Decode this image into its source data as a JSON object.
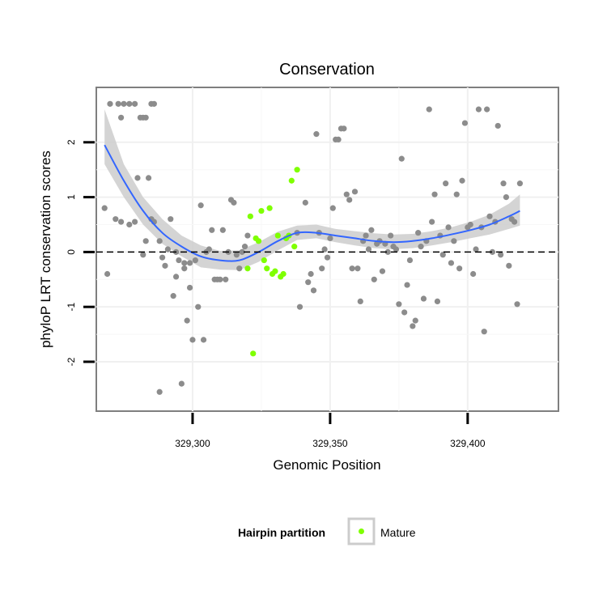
{
  "chart_data": {
    "type": "scatter",
    "title": "Conservation",
    "xlabel": "Genomic Position",
    "ylabel": "phyloP LRT conservation scores",
    "xlim": [
      329265,
      329433
    ],
    "ylim": [
      -2.9,
      3.0
    ],
    "x_ticks": [
      329300,
      329350,
      329400
    ],
    "x_tick_labels": [
      "329,300",
      "329,350",
      "329,400"
    ],
    "y_ticks": [
      -2,
      -1,
      0,
      1,
      2
    ],
    "y_tick_labels": [
      "-2",
      "-1",
      "0",
      "1",
      "2"
    ],
    "grid": true,
    "reference_line": {
      "y": 0,
      "style": "dashed"
    },
    "legend": {
      "title": "Hairpin partition",
      "entries": [
        "Mature"
      ],
      "placement": "bottom"
    },
    "colors": {
      "other": "#8c8c8c",
      "mature": "#7fff00",
      "smooth_line": "#3366ff",
      "confidence_band": "#cccccc"
    },
    "series": [
      {
        "points": [
          [
            329273,
            2.7
          ],
          [
            329275,
            2.7
          ],
          [
            329277,
            2.7
          ],
          [
            329279,
            2.7
          ],
          [
            329281,
            2.45
          ],
          [
            329282,
            2.45
          ],
          [
            329283,
            2.45
          ],
          [
            329285,
            2.7
          ],
          [
            329286,
            2.7
          ],
          [
            329274,
            2.45
          ],
          [
            329270,
            2.7
          ],
          [
            329268,
            0.8
          ],
          [
            329269,
            -0.4
          ],
          [
            329272,
            0.6
          ],
          [
            329274,
            0.55
          ],
          [
            329277,
            0.5
          ],
          [
            329279,
            0.55
          ],
          [
            329280,
            1.35
          ],
          [
            329282,
            -0.05
          ],
          [
            329283,
            0.2
          ],
          [
            329284,
            1.35
          ],
          [
            329285,
            0.6
          ],
          [
            329286,
            0.55
          ],
          [
            329288,
            0.2
          ],
          [
            329288,
            -2.55
          ],
          [
            329289,
            -0.1
          ],
          [
            329290,
            -0.25
          ],
          [
            329291,
            0.05
          ],
          [
            329292,
            0.6
          ],
          [
            329293,
            -0.8
          ],
          [
            329294,
            -0.45
          ],
          [
            329294,
            0.0
          ],
          [
            329295,
            -0.15
          ],
          [
            329296,
            -2.4
          ],
          [
            329297,
            -0.2
          ],
          [
            329297,
            -0.3
          ],
          [
            329298,
            -1.25
          ],
          [
            329299,
            -0.65
          ],
          [
            329299,
            -0.2
          ],
          [
            329300,
            -1.6
          ],
          [
            329301,
            -0.15
          ],
          [
            329302,
            -1.0
          ],
          [
            329303,
            0.85
          ],
          [
            329304,
            -1.6
          ],
          [
            329305,
            0.0
          ],
          [
            329306,
            0.05
          ],
          [
            329307,
            0.4
          ],
          [
            329308,
            -0.5
          ],
          [
            329309,
            -0.5
          ],
          [
            329310,
            -0.5
          ],
          [
            329311,
            0.4
          ],
          [
            329312,
            -0.5
          ],
          [
            329313,
            0.0
          ],
          [
            329314,
            0.95
          ],
          [
            329315,
            0.9
          ],
          [
            329316,
            -0.05
          ],
          [
            329317,
            -0.3
          ],
          [
            329318,
            0.0
          ],
          [
            329319,
            0.1
          ],
          [
            329320,
            0.3
          ],
          [
            329338,
            0.35
          ],
          [
            329339,
            -1.0
          ],
          [
            329341,
            0.9
          ],
          [
            329342,
            -0.55
          ],
          [
            329343,
            -0.4
          ],
          [
            329344,
            -0.7
          ],
          [
            329345,
            2.15
          ],
          [
            329346,
            0.35
          ],
          [
            329347,
            -0.3
          ],
          [
            329348,
            0.05
          ],
          [
            329349,
            -0.1
          ],
          [
            329350,
            0.25
          ],
          [
            329351,
            0.8
          ],
          [
            329352,
            2.05
          ],
          [
            329353,
            2.05
          ],
          [
            329354,
            2.25
          ],
          [
            329355,
            2.25
          ],
          [
            329356,
            1.05
          ],
          [
            329357,
            0.95
          ],
          [
            329358,
            -0.3
          ],
          [
            329359,
            1.1
          ],
          [
            329360,
            -0.3
          ],
          [
            329361,
            -0.9
          ],
          [
            329362,
            0.2
          ],
          [
            329363,
            0.3
          ],
          [
            329364,
            0.05
          ],
          [
            329365,
            0.4
          ],
          [
            329366,
            -0.5
          ],
          [
            329367,
            0.15
          ],
          [
            329368,
            0.2
          ],
          [
            329369,
            -0.35
          ],
          [
            329370,
            0.15
          ],
          [
            329371,
            0.0
          ],
          [
            329372,
            0.3
          ],
          [
            329373,
            0.1
          ],
          [
            329374,
            0.05
          ],
          [
            329375,
            -0.95
          ],
          [
            329376,
            1.7
          ],
          [
            329377,
            -1.1
          ],
          [
            329378,
            -0.6
          ],
          [
            329379,
            -0.15
          ],
          [
            329380,
            -1.35
          ],
          [
            329381,
            -1.25
          ],
          [
            329382,
            0.35
          ],
          [
            329383,
            0.1
          ],
          [
            329384,
            -0.85
          ],
          [
            329385,
            0.2
          ],
          [
            329386,
            2.6
          ],
          [
            329387,
            0.55
          ],
          [
            329388,
            1.05
          ],
          [
            329389,
            -0.9
          ],
          [
            329390,
            0.3
          ],
          [
            329391,
            -0.05
          ],
          [
            329392,
            1.25
          ],
          [
            329393,
            0.45
          ],
          [
            329394,
            -0.2
          ],
          [
            329395,
            0.2
          ],
          [
            329396,
            1.05
          ],
          [
            329397,
            -0.3
          ],
          [
            329398,
            1.3
          ],
          [
            329399,
            2.35
          ],
          [
            329400,
            0.45
          ],
          [
            329401,
            0.5
          ],
          [
            329402,
            -0.4
          ],
          [
            329403,
            0.05
          ],
          [
            329404,
            2.6
          ],
          [
            329405,
            0.45
          ],
          [
            329406,
            -1.45
          ],
          [
            329407,
            2.6
          ],
          [
            329408,
            0.65
          ],
          [
            329409,
            0.0
          ],
          [
            329410,
            0.55
          ],
          [
            329411,
            2.3
          ],
          [
            329412,
            -0.05
          ],
          [
            329413,
            1.25
          ],
          [
            329414,
            1.0
          ],
          [
            329415,
            -0.25
          ],
          [
            329416,
            0.6
          ],
          [
            329417,
            0.55
          ],
          [
            329418,
            -0.95
          ],
          [
            329419,
            1.25
          ]
        ]
      },
      {
        "name": "Mature",
        "points": [
          [
            329321,
            0.65
          ],
          [
            329322,
            -1.85
          ],
          [
            329323,
            0.25
          ],
          [
            329324,
            0.2
          ],
          [
            329325,
            0.75
          ],
          [
            329326,
            -0.15
          ],
          [
            329327,
            -0.3
          ],
          [
            329328,
            0.8
          ],
          [
            329329,
            -0.4
          ],
          [
            329330,
            -0.35
          ],
          [
            329331,
            0.3
          ],
          [
            329332,
            -0.45
          ],
          [
            329333,
            -0.4
          ],
          [
            329334,
            0.25
          ],
          [
            329335,
            0.3
          ],
          [
            329336,
            1.3
          ],
          [
            329337,
            0.1
          ],
          [
            329338,
            1.5
          ],
          [
            329320,
            -0.3
          ]
        ]
      }
    ],
    "smooth_line": {
      "x": [
        329268,
        329275,
        329282,
        329289,
        329296,
        329303,
        329310,
        329317,
        329324,
        329331,
        329338,
        329345,
        329352,
        329359,
        329366,
        329373,
        329380,
        329387,
        329394,
        329401,
        329408,
        329415,
        329419
      ],
      "y": [
        1.95,
        1.3,
        0.75,
        0.35,
        0.1,
        -0.08,
        -0.15,
        -0.15,
        0.0,
        0.2,
        0.35,
        0.35,
        0.3,
        0.25,
        0.2,
        0.18,
        0.2,
        0.25,
        0.32,
        0.4,
        0.5,
        0.65,
        0.75
      ],
      "lower": [
        1.6,
        1.0,
        0.5,
        0.15,
        -0.08,
        -0.28,
        -0.32,
        -0.33,
        -0.18,
        0.03,
        0.22,
        0.25,
        0.18,
        0.12,
        0.07,
        0.05,
        0.07,
        0.12,
        0.18,
        0.25,
        0.32,
        0.42,
        0.48
      ],
      "upper": [
        2.6,
        1.6,
        1.0,
        0.6,
        0.3,
        0.12,
        0.02,
        0.03,
        0.18,
        0.37,
        0.48,
        0.5,
        0.42,
        0.38,
        0.34,
        0.32,
        0.33,
        0.38,
        0.45,
        0.55,
        0.68,
        0.88,
        1.05
      ]
    }
  }
}
